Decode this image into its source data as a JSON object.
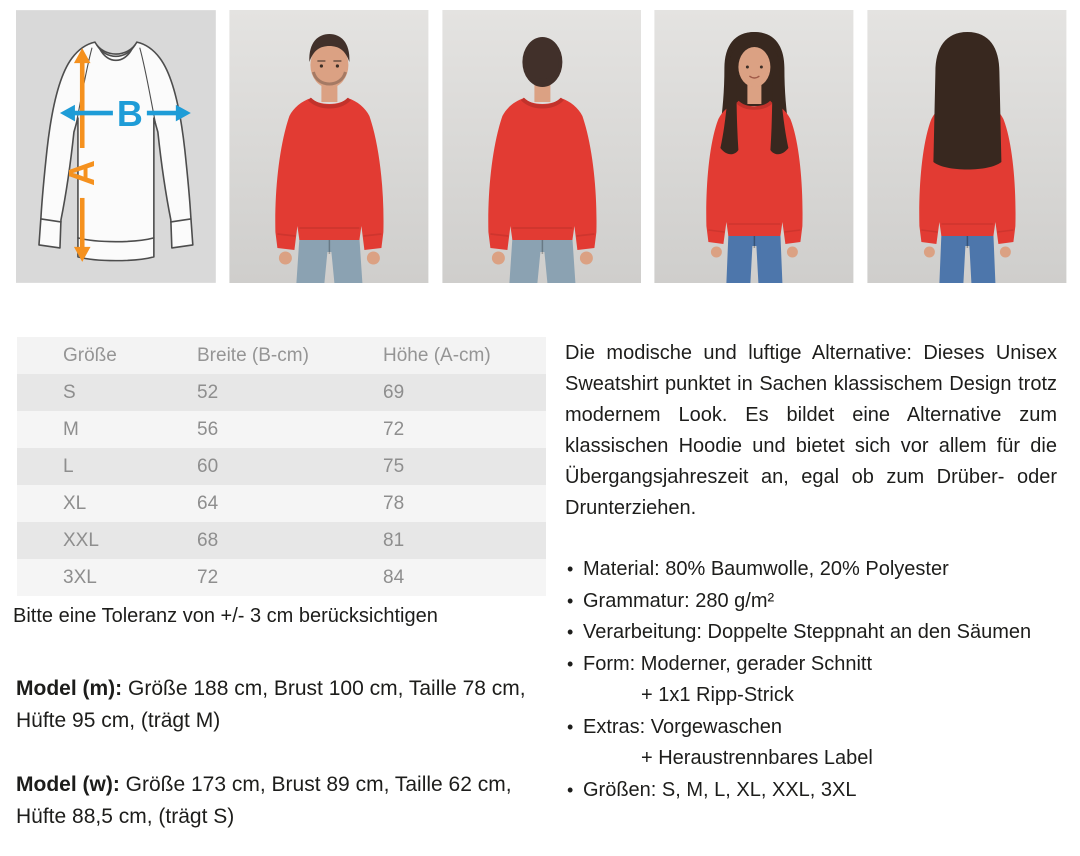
{
  "colors": {
    "table_header_bg": "#f3f3f3",
    "table_row_odd_bg": "#e7e7e7",
    "table_row_even_bg": "#f5f5f5",
    "table_text": "#8e8e8e",
    "body_text": "#1d1d1b",
    "diagram_bg": "#d9d9d9",
    "arrow_a_orange": "#f5911e",
    "arrow_b_blue": "#1e9cd7",
    "sweatshirt_red": "#e23b33",
    "sweatshirt_red_dark": "#c2322b",
    "photo_bg_top": "#e4e3e1",
    "photo_bg_bottom": "#cfcecc",
    "skin": "#dba183",
    "hair_male": "#41302a",
    "hair_female": "#38281f",
    "jeans_male": "#8ba2b2",
    "jeans_female": "#4d76ab"
  },
  "media_row": {
    "diagram": {
      "label_a": "A",
      "label_b": "B"
    },
    "photos": [
      {
        "name": "product-photo-male-front",
        "variant": "male-front"
      },
      {
        "name": "product-photo-male-back",
        "variant": "male-back"
      },
      {
        "name": "product-photo-female-front",
        "variant": "female-front"
      },
      {
        "name": "product-photo-female-back",
        "variant": "female-back"
      }
    ]
  },
  "size_table": {
    "columns": [
      "Größe",
      "Breite (B-cm)",
      "Höhe (A-cm)"
    ],
    "rows": [
      {
        "size": "S",
        "breite": "52",
        "hoehe": "69"
      },
      {
        "size": "M",
        "breite": "56",
        "hoehe": "72"
      },
      {
        "size": "L",
        "breite": "60",
        "hoehe": "75"
      },
      {
        "size": "XL",
        "breite": "64",
        "hoehe": "78"
      },
      {
        "size": "XXL",
        "breite": "68",
        "hoehe": "81"
      },
      {
        "size": "3XL",
        "breite": "72",
        "hoehe": "84"
      }
    ]
  },
  "tolerance_note": "Bitte eine Toleranz von +/- 3 cm berücksichtigen",
  "models": [
    {
      "label": "Model (m):",
      "text": " Größe 188 cm, Brust 100 cm, Taille 78 cm, Hüfte 95 cm, (trägt M)"
    },
    {
      "label": "Model (w):",
      "text": " Größe 173 cm, Brust 89 cm, Taille 62 cm, Hüfte 88,5 cm, (trägt S)"
    }
  ],
  "description": "Die modische und luftige Alternative: Dieses Unisex Sweatshirt punktet in Sachen klassischem Design trotz modernem Look. Es bildet eine Alternative zum klassischen Hoodie und bietet sich vor allem für die Übergangsjahreszeit an, egal ob zum Drüber- oder Drunterziehen.",
  "features": [
    {
      "text": "Material: 80% Baumwolle, 20% Polyester"
    },
    {
      "text": "Grammatur: 280 g/m²"
    },
    {
      "text": "Verarbeitung: Doppelte Steppnaht an den Säumen"
    },
    {
      "text": "Form: Moderner, gerader Schnitt",
      "line2": "+ 1x1 Ripp-Strick"
    },
    {
      "text": "Extras: Vorgewaschen",
      "line2": "+ Heraustrennbares Label"
    },
    {
      "text": "Größen:  S, M, L, XL, XXL, 3XL"
    }
  ]
}
